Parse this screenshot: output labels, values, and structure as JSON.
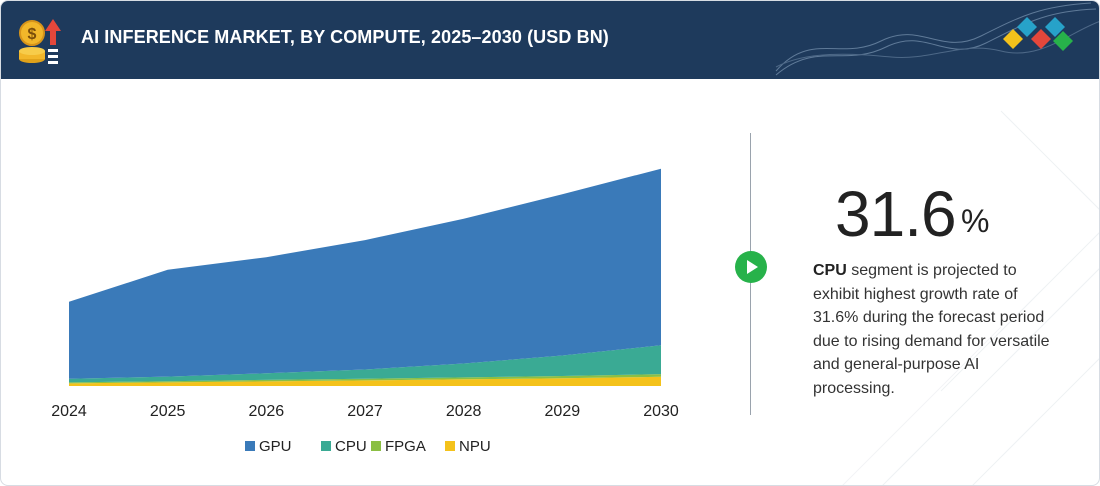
{
  "header": {
    "title": "AI INFERENCE MARKET, BY COMPUTE, 2025–2030 (USD BN)"
  },
  "highlight": {
    "value": "31.6",
    "unit": "%",
    "segment": "CPU",
    "text": " segment is projected to exhibit highest growth rate of 31.6% during the forecast period due to rising demand for versatile and general-purpose AI processing."
  },
  "colors": {
    "header_bg": "#1e3a5c",
    "gpu": "#3a7ab9",
    "cpu": "#3aaa94",
    "fpga": "#8bbf44",
    "npu": "#f4c21b",
    "accent_play": "#27b24a"
  },
  "chart_data": {
    "type": "area",
    "stacked": true,
    "x": [
      "2024",
      "2025",
      "2026",
      "2027",
      "2028",
      "2029",
      "2030"
    ],
    "ylim": [
      0,
      260
    ],
    "grid": false,
    "legend": "bottom",
    "series": [
      {
        "name": "NPU",
        "values": [
          2.5,
          3.5,
          4.5,
          5.5,
          6.5,
          7.5,
          9
        ]
      },
      {
        "name": "FPGA",
        "values": [
          1,
          1.2,
          1.4,
          1.6,
          1.9,
          2.2,
          2.6
        ]
      },
      {
        "name": "CPU",
        "values": [
          3.5,
          4.5,
          6.5,
          9,
          13.5,
          20,
          28
        ]
      },
      {
        "name": "GPU",
        "values": [
          75,
          104,
          113,
          126,
          141,
          157,
          172
        ]
      }
    ],
    "legend_order": [
      "GPU",
      "CPU",
      "FPGA",
      "NPU"
    ]
  }
}
